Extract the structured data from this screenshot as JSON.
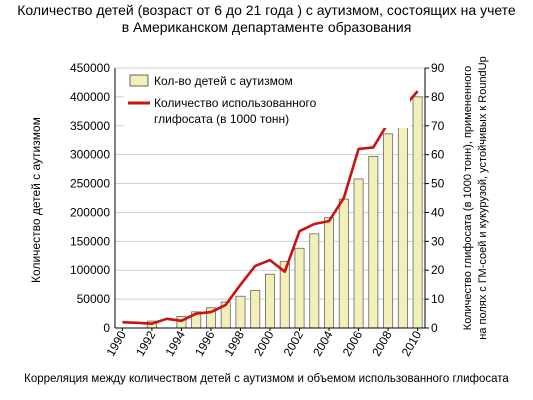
{
  "title_line1": "Количество детей (возраст от 6 до 21 года ) с аутизмом, состоящих на учете",
  "title_line2": "в Американском департаменте образования",
  "caption": "Корреляция между количеством детей с аутизмом и объемом использованного глифосата",
  "colors": {
    "bar_fill": "#f2efb8",
    "bar_stroke": "#666666",
    "line": "#cc1111",
    "grid": "#cfcfcf"
  },
  "chart_data": {
    "type": "bar+line",
    "x": [
      1990,
      1991,
      1992,
      1993,
      1994,
      1995,
      1996,
      1997,
      1998,
      1999,
      2000,
      2001,
      2002,
      2003,
      2004,
      2005,
      2006,
      2007,
      2008,
      2009,
      2010
    ],
    "x_tick_labels": [
      "1990",
      "1992",
      "1994",
      "1996",
      "1998",
      "2000",
      "2002",
      "2004",
      "2006",
      "2008",
      "2010"
    ],
    "ylabel": "Количество детей  с аутизмом",
    "ylabel_right_lines": [
      "Количество глифосата (в 1000 тонн), примененного",
      "на полях с ГМ-соей и кукурузой, устойчивых к RoundUp"
    ],
    "ylim": [
      0,
      450000
    ],
    "y_ticks": [
      "0",
      "50000",
      "100000",
      "150000",
      "200000",
      "250000",
      "300000",
      "350000",
      "400000",
      "450000"
    ],
    "ylim_right": [
      0,
      90
    ],
    "y_ticks_right": [
      "0",
      "10",
      "20",
      "30",
      "40",
      "50",
      "60",
      "70",
      "80",
      "90"
    ],
    "grid": "horizontal",
    "legend_position": "top-left",
    "series": [
      {
        "name": "Кол-во детей с аутизмом",
        "type": "bar",
        "axis": "left",
        "values": [
          0,
          0,
          12000,
          0,
          20000,
          28000,
          35000,
          45000,
          55000,
          65000,
          93000,
          115000,
          138000,
          163000,
          191000,
          223000,
          258000,
          297000,
          336000,
          378000,
          400000
        ]
      },
      {
        "name_lines": [
          "Количество использованного",
          "глифосата (в 1000 тонн)"
        ],
        "type": "line",
        "axis": "right",
        "values": [
          2,
          1.8,
          1.5,
          3.2,
          2.5,
          5,
          5.5,
          8,
          15,
          21.5,
          23.5,
          19.5,
          33.5,
          36,
          37,
          45,
          62,
          62.5,
          71,
          76,
          82
        ]
      }
    ]
  }
}
